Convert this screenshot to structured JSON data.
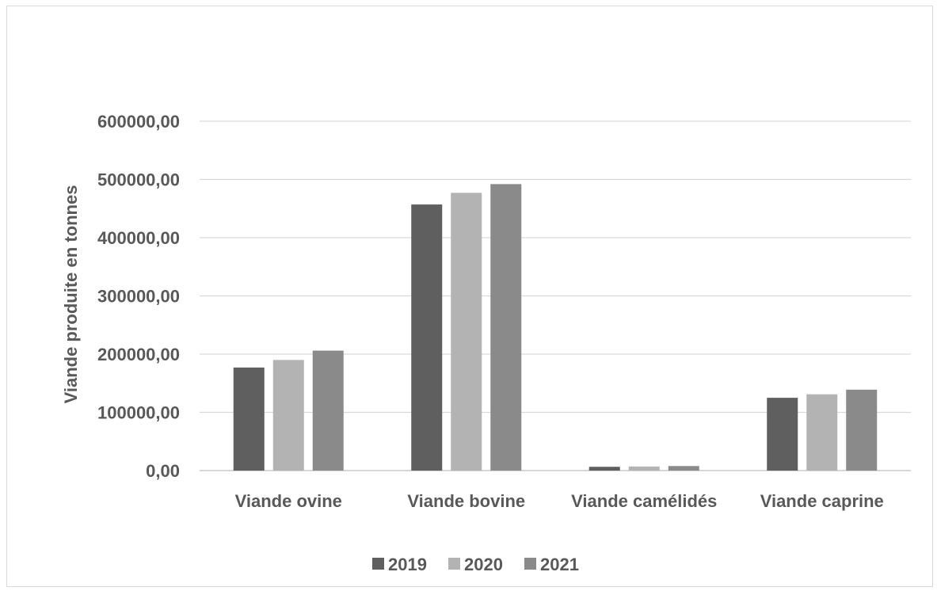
{
  "chart_data": {
    "type": "bar",
    "title": "",
    "xlabel": "",
    "ylabel": "Viande produite en tonnes",
    "categories": [
      "Viande ovine",
      "Viande bovine",
      "Viande camélidés",
      "Viande caprine"
    ],
    "series": [
      {
        "name": "2019",
        "color": "#5f5f5f",
        "values": [
          177000,
          457000,
          6500,
          125000
        ]
      },
      {
        "name": "2020",
        "color": "#b3b3b3",
        "values": [
          190000,
          477000,
          7000,
          131000
        ]
      },
      {
        "name": "2021",
        "color": "#8a8a8a",
        "values": [
          206000,
          492000,
          7800,
          139000
        ]
      }
    ],
    "ylim": [
      0,
      600000
    ],
    "yticks": [
      "0,00",
      "100000,00",
      "200000,00",
      "300000,00",
      "400000,00",
      "500000,00",
      "600000,00"
    ],
    "grid": true,
    "legend_position": "bottom"
  }
}
